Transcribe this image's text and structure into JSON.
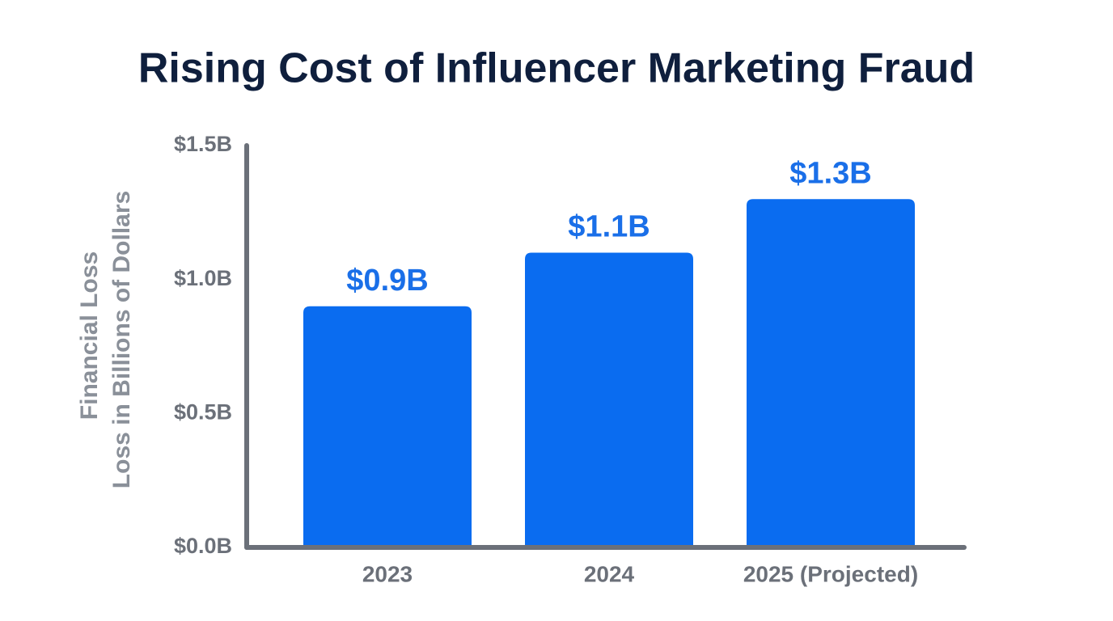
{
  "chart_data": {
    "type": "bar",
    "title": "Rising Cost of Influencer Marketing Fraud",
    "y_label": [
      "Financial Loss",
      "Loss in Billions of Dollars"
    ],
    "categories": [
      "2023",
      "2024",
      "2025 (Projected)"
    ],
    "values": [
      0.9,
      1.1,
      1.3
    ],
    "value_labels": [
      "$0.9B",
      "$1.1B",
      "$1.3B"
    ],
    "color": "#0a6cf0",
    "ylim": [
      0,
      1.5
    ],
    "yticks": [
      {
        "value": 0,
        "label": "$0.0B"
      },
      {
        "value": 0.5,
        "label": "$0.5B"
      },
      {
        "value": 1.0,
        "label": "$1.0B"
      },
      {
        "value": 1.5,
        "label": "$1.5B"
      }
    ],
    "grid": false
  }
}
